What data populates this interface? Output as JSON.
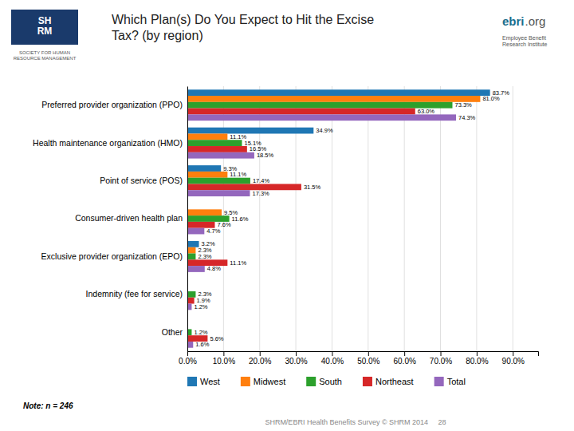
{
  "chart_data": {
    "type": "bar",
    "orientation": "horizontal",
    "title": "Which Plan(s) Do You Expect to Hit the Excise\nTax? (by region)",
    "categories": [
      "Preferred provider organization (PPO)",
      "Health maintenance organization (HMO)",
      "Point of service (POS)",
      "Consumer-driven health plan",
      "Exclusive provider organization (EPO)",
      "Indemnity (fee for service)",
      "Other"
    ],
    "series": [
      {
        "name": "West",
        "values": [
          83.7,
          34.9,
          9.3,
          0.0,
          3.2,
          0.0,
          0.0
        ],
        "value_labels": [
          "83.7%",
          "34.9%",
          "9.3%",
          null,
          "3.2%",
          null,
          null
        ]
      },
      {
        "name": "Midwest",
        "values": [
          81.0,
          11.1,
          11.1,
          9.5,
          2.3,
          0.0,
          0.0
        ],
        "value_labels": [
          "81.0%",
          "11.1%",
          "11.1%",
          "9.5%",
          "2.3%",
          null,
          null
        ]
      },
      {
        "name": "South",
        "values": [
          73.3,
          15.1,
          17.4,
          11.6,
          2.3,
          2.3,
          1.2
        ],
        "value_labels": [
          "73.3%",
          "15.1%",
          "17.4%",
          "11.6%",
          "2.3%",
          "2.3%",
          "1.2%"
        ]
      },
      {
        "name": "Northeast",
        "values": [
          63.0,
          16.5,
          31.5,
          7.6,
          11.1,
          1.9,
          5.6
        ],
        "value_labels": [
          "63.0%",
          "16.5%",
          "31.5%",
          "7.6%",
          "11.1%",
          "1.9%",
          "5.6%"
        ]
      },
      {
        "name": "Total",
        "values": [
          74.3,
          18.5,
          17.3,
          4.7,
          4.8,
          1.2,
          1.6
        ],
        "value_labels": [
          "74.3%",
          "18.5%",
          "17.3%",
          "4.7%",
          "4.8%",
          "1.2%",
          "1.6%"
        ]
      }
    ],
    "xlim": [
      0,
      97
    ],
    "xticks": [
      {
        "value": 0,
        "label": "0.0%"
      },
      {
        "value": 10,
        "label": "10.0%"
      },
      {
        "value": 20,
        "label": "20.0%"
      },
      {
        "value": 30,
        "label": "30.0%"
      },
      {
        "value": 40,
        "label": "40.0%"
      },
      {
        "value": 50,
        "label": "50.0%"
      },
      {
        "value": 60,
        "label": "60.0%"
      },
      {
        "value": 70,
        "label": "70.0%"
      },
      {
        "value": 80,
        "label": "80.0%"
      },
      {
        "value": 90,
        "label": "90.0%"
      }
    ],
    "grid": true,
    "legend": "bottom",
    "data_labels": true,
    "annotations": [
      "SH\nRM",
      "SOCIETY FOR HUMAN\nRESOURCE MANAGEMENT",
      "ebri",
      ".org",
      "Employee Benefit\nResearch Institute",
      "Note: n = 246",
      "SHRM/EBRI Health Benefits Survey © SHRM 2014     28"
    ]
  }
}
